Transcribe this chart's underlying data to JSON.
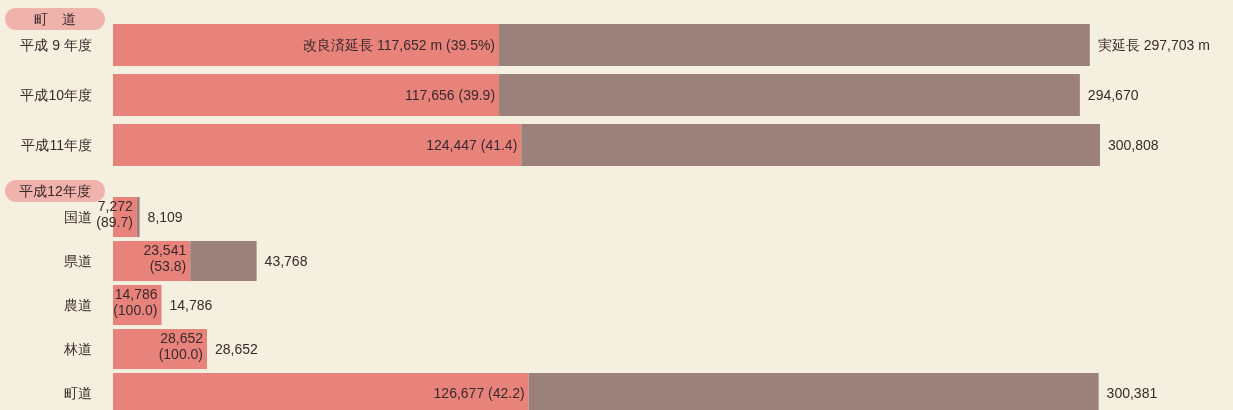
{
  "chart_data": [
    {
      "type": "bar",
      "orientation": "horizontal",
      "stacked": true,
      "title": "町　道",
      "categories": [
        "平成 9 年度",
        "平成10年度",
        "平成11年度"
      ],
      "series": [
        {
          "color": "#e8837c",
          "values": [
            117652,
            117656,
            124447
          ],
          "value_labels": [
            "改良済延長  117,652 m (39.5%)",
            "117,656 (39.9)",
            "124,447 (41.4)"
          ]
        },
        {
          "color": "#9c807c",
          "values": [
            180051,
            177014,
            176361
          ]
        }
      ],
      "totals": [
        "実延長  297,703 m",
        "294,670",
        "300,808"
      ]
    },
    {
      "type": "bar",
      "orientation": "horizontal",
      "stacked": true,
      "title": "平成12年度",
      "categories": [
        "国道",
        "県道",
        "農道",
        "林道",
        "町道"
      ],
      "series": [
        {
          "color": "#e8837c",
          "values": [
            7272,
            23541,
            14786,
            28652,
            126677
          ],
          "value_labels": [
            "7,272 (89.7)",
            "23,541 (53.8)",
            "14,786 (100.0)",
            "28,652 (100.0)",
            "126,677 (42.2)"
          ]
        },
        {
          "color": "#9c807c",
          "values": [
            837,
            20227,
            0,
            0,
            173704
          ]
        }
      ],
      "totals": [
        "8,109",
        "43,768",
        "14,786",
        "28,652",
        "300,381"
      ]
    }
  ]
}
